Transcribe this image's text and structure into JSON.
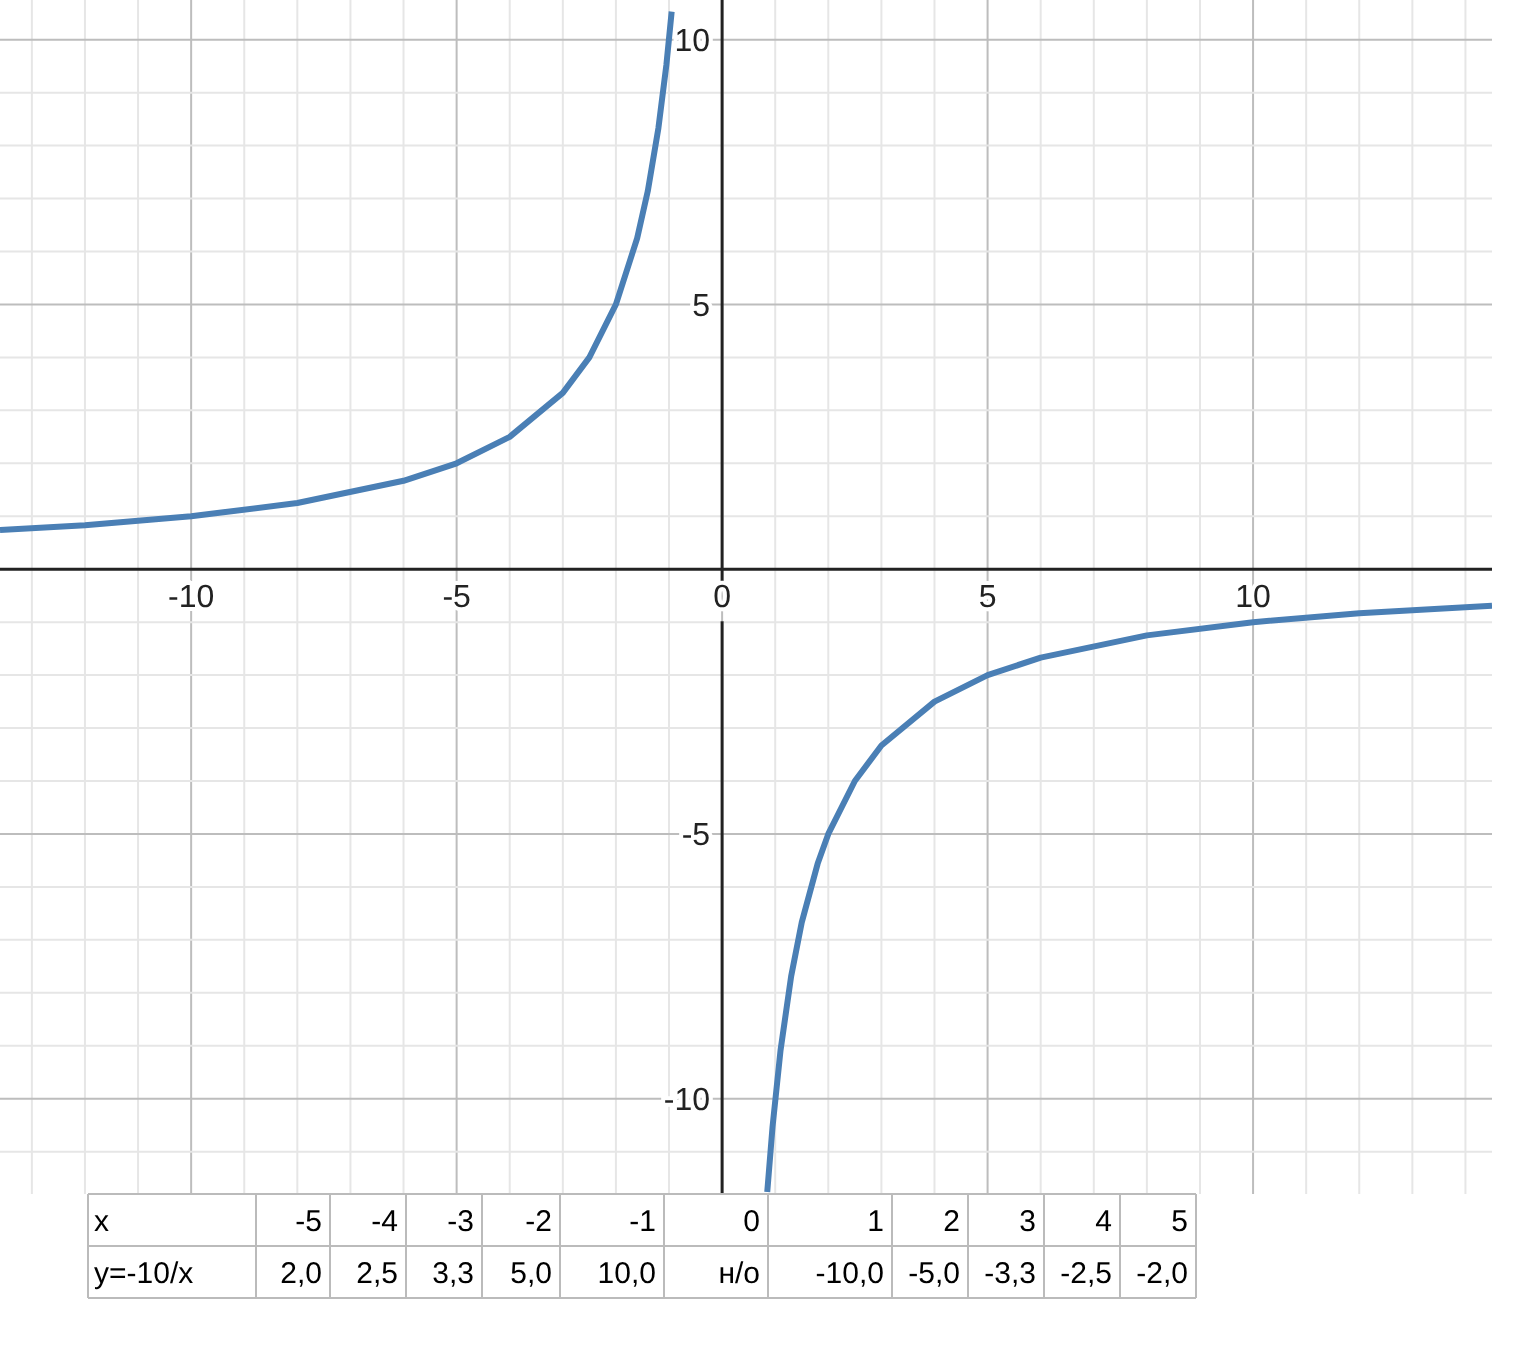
{
  "chart_data": [
    {
      "type": "line",
      "xlim": [
        -13.6,
        14.5
      ],
      "ylim": [
        -11.8,
        10.75
      ],
      "grid": true,
      "marker": "none",
      "line_style": "solid",
      "xticks": [
        {
          "value": -13,
          "label": null
        },
        {
          "value": -12,
          "label": null
        },
        {
          "value": -11,
          "label": null
        },
        -10,
        {
          "value": -9,
          "label": null
        },
        {
          "value": -8,
          "label": null
        },
        {
          "value": -7,
          "label": null
        },
        {
          "value": -6,
          "label": null
        },
        -5,
        {
          "value": -4,
          "label": null
        },
        {
          "value": -3,
          "label": null
        },
        {
          "value": -2,
          "label": null
        },
        {
          "value": -1,
          "label": null
        },
        0,
        {
          "value": 1,
          "label": null
        },
        {
          "value": 2,
          "label": null
        },
        {
          "value": 3,
          "label": null
        },
        {
          "value": 4,
          "label": null
        },
        5,
        {
          "value": 6,
          "label": null
        },
        {
          "value": 7,
          "label": null
        },
        {
          "value": 8,
          "label": null
        },
        {
          "value": 9,
          "label": null
        },
        10,
        {
          "value": 11,
          "label": null
        },
        {
          "value": 12,
          "label": null
        },
        {
          "value": 13,
          "label": null
        },
        {
          "value": 14,
          "label": null
        }
      ],
      "yticks": [
        {
          "value": -11,
          "label": null
        },
        -10,
        {
          "value": -9,
          "label": null
        },
        {
          "value": -8,
          "label": null
        },
        {
          "value": -7,
          "label": null
        },
        {
          "value": -6,
          "label": null
        },
        -5,
        {
          "value": -4,
          "label": null
        },
        {
          "value": -3,
          "label": null
        },
        {
          "value": -2,
          "label": null
        },
        {
          "value": -1,
          "label": null
        },
        {
          "value": 0,
          "label": null
        },
        {
          "value": 1,
          "label": null
        },
        {
          "value": 2,
          "label": null
        },
        {
          "value": 3,
          "label": null
        },
        {
          "value": 4,
          "label": null
        },
        5,
        {
          "value": 6,
          "label": null
        },
        {
          "value": 7,
          "label": null
        },
        {
          "value": 8,
          "label": null
        },
        {
          "value": 9,
          "label": null
        },
        10
      ],
      "series": [
        {
          "color": "#4a7fb5",
          "x": [
            -13.6,
            -12,
            -10,
            -8,
            -6,
            -5,
            -4,
            -3,
            -2.5,
            -2,
            -1.6,
            -1.4,
            -1.2,
            -1.05,
            -0.95,
            0,
            0.85,
            0.95,
            1.1,
            1.3,
            1.5,
            1.8,
            2,
            2.5,
            3,
            4,
            5,
            6,
            8,
            10,
            12,
            14.5
          ],
          "values": [
            0.74,
            0.83,
            1,
            1.25,
            1.67,
            2,
            2.5,
            3.33,
            4,
            5,
            6.25,
            7.14,
            8.33,
            9.52,
            10.53,
            null,
            -11.76,
            -10.53,
            -9.09,
            -7.69,
            -6.67,
            -5.56,
            -5,
            -4,
            -3.33,
            -2.5,
            -2,
            -1.67,
            -1.25,
            -1,
            -0.83,
            -0.69
          ]
        }
      ]
    },
    {
      "type": "other",
      "annotations": [
        "x",
        "-5",
        "-4",
        "-3",
        "-2",
        "-1",
        "0",
        "1",
        "2",
        "3",
        "4",
        "5",
        "y=-10/x",
        "2,0",
        "2,5",
        "3,3",
        "5,0",
        "10,0",
        "н/о",
        "-10,0",
        "-5,0",
        "-3,3",
        "-2,5",
        "-2,0"
      ]
    }
  ]
}
